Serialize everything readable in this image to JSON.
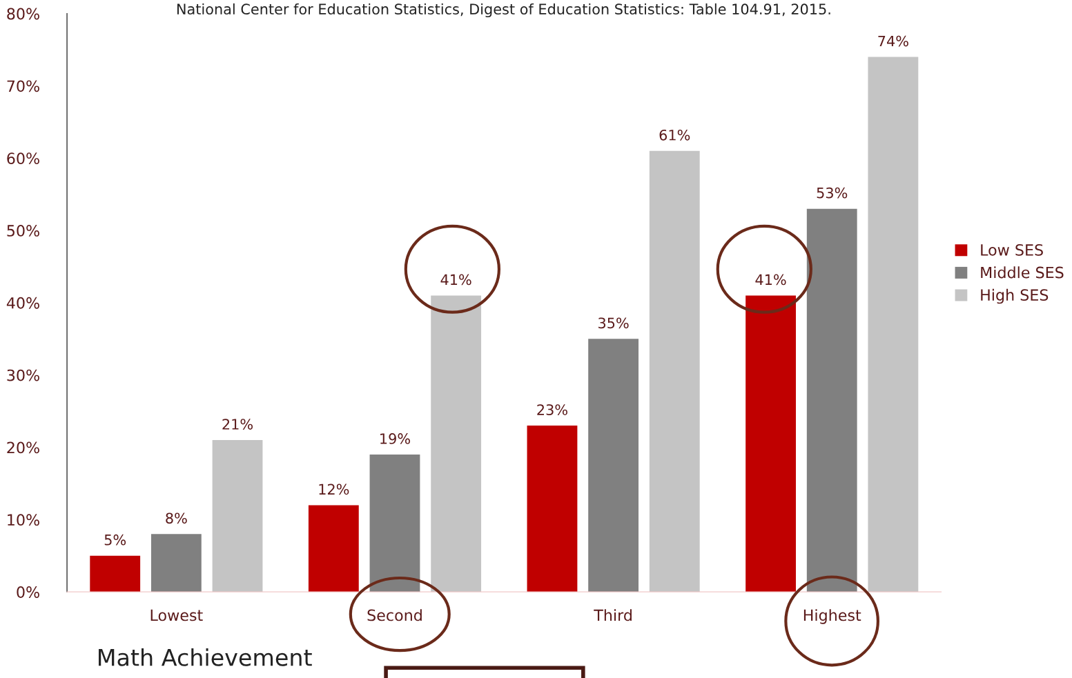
{
  "chart_data": {
    "type": "bar",
    "xlabel": "Math Achievement",
    "annotations": [
      "National Center for Education Statistics, Digest of Education Statistics: Table 104.91, 2015."
    ],
    "categories": [
      "Lowest",
      "Second",
      "Third",
      "Highest"
    ],
    "series": [
      {
        "name": "Low SES",
        "color": "#c00000",
        "values": [
          5,
          12,
          23,
          41
        ],
        "value_labels": [
          "5%",
          "12%",
          "23%",
          "41%"
        ]
      },
      {
        "name": "Middle SES",
        "color": "#808080",
        "values": [
          8,
          19,
          35,
          53
        ],
        "value_labels": [
          "8%",
          "19%",
          "35%",
          "53%"
        ]
      },
      {
        "name": "High SES",
        "color": "#c4c4c4",
        "values": [
          21,
          41,
          61,
          74
        ],
        "value_labels": [
          "21%",
          "41%",
          "61%",
          "74%"
        ]
      }
    ],
    "ylim": [
      0,
      80
    ],
    "yticks": [
      {
        "value": 0,
        "label": "0%"
      },
      {
        "value": 10,
        "label": "10%"
      },
      {
        "value": 20,
        "label": "20%"
      },
      {
        "value": 30,
        "label": "30%"
      },
      {
        "value": 40,
        "label": "40%"
      },
      {
        "value": 50,
        "label": "50%"
      },
      {
        "value": 60,
        "label": "60%"
      },
      {
        "value": 70,
        "label": "70%"
      },
      {
        "value": 80,
        "label": "80%"
      }
    ],
    "legend": "right",
    "grid": false
  }
}
